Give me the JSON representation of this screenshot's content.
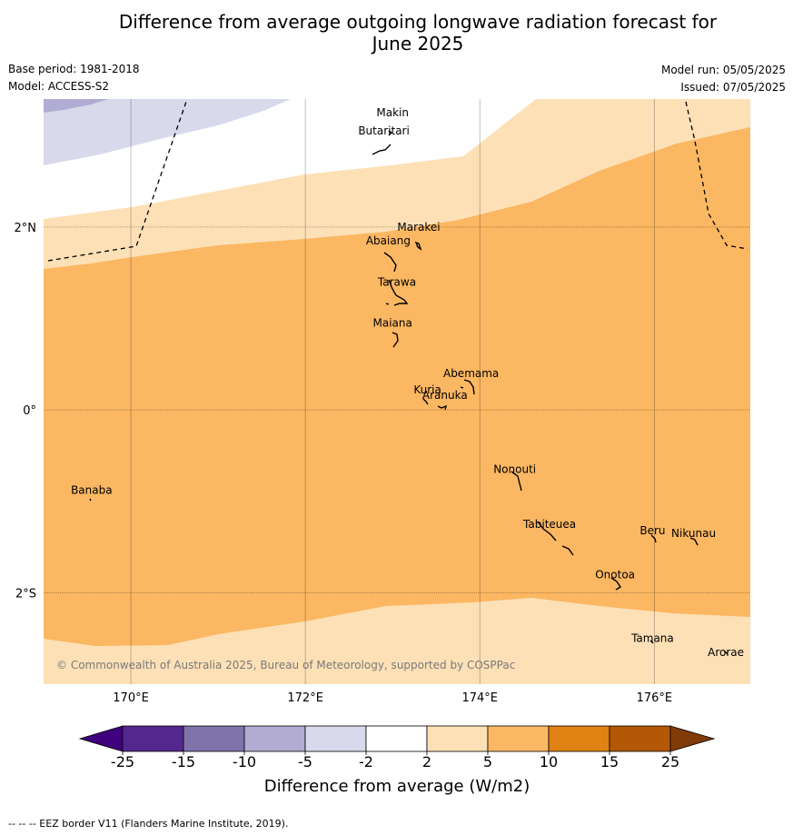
{
  "title": {
    "line1": "Difference from average outgoing longwave radiation forecast for",
    "line2": "June 2025"
  },
  "meta": {
    "base_period": "Base period: 1981-2018",
    "model": "Model: ACCESS-S2",
    "model_run": "Model run: 05/05/2025",
    "issued": "Issued: 07/05/2025"
  },
  "map": {
    "lon_range": [
      169,
      177.1
    ],
    "lat_range": [
      -3.0,
      3.4
    ],
    "lon_ticks": [
      {
        "value": 170,
        "label": "170°E"
      },
      {
        "value": 172,
        "label": "172°E"
      },
      {
        "value": 174,
        "label": "174°E"
      },
      {
        "value": 176,
        "label": "176°E"
      }
    ],
    "lat_ticks": [
      {
        "value": 2,
        "label": "2°N"
      },
      {
        "value": 0,
        "label": "0°"
      },
      {
        "value": -2,
        "label": "2°S"
      }
    ],
    "places": [
      {
        "name": "Makin",
        "lon": 173.0,
        "lat": 3.25
      },
      {
        "name": "Butaritari",
        "lon": 172.9,
        "lat": 3.05
      },
      {
        "name": "Marakei",
        "lon": 173.3,
        "lat": 2.0
      },
      {
        "name": "Abaiang",
        "lon": 172.95,
        "lat": 1.85
      },
      {
        "name": "Tarawa",
        "lon": 173.05,
        "lat": 1.4
      },
      {
        "name": "Maiana",
        "lon": 173.0,
        "lat": 0.95
      },
      {
        "name": "Abemama",
        "lon": 173.9,
        "lat": 0.4
      },
      {
        "name": "Kuria",
        "lon": 173.4,
        "lat": 0.22
      },
      {
        "name": "Aranuka",
        "lon": 173.6,
        "lat": 0.16
      },
      {
        "name": "Nonouti",
        "lon": 174.4,
        "lat": -0.65
      },
      {
        "name": "Banaba",
        "lon": 169.55,
        "lat": -0.88
      },
      {
        "name": "Beru",
        "lon": 175.98,
        "lat": -1.32
      },
      {
        "name": "Nikunau",
        "lon": 176.45,
        "lat": -1.35
      },
      {
        "name": "Tabiteuea",
        "lon": 174.8,
        "lat": -1.25
      },
      {
        "name": "Onotoa",
        "lon": 175.55,
        "lat": -1.8
      },
      {
        "name": "Tamana",
        "lon": 175.98,
        "lat": -2.5
      },
      {
        "name": "Arorae",
        "lon": 176.82,
        "lat": -2.65
      }
    ],
    "copyright": "© Commonwealth of Australia 2025, Bureau of Meteorology, supported by COSPPac",
    "colors": {
      "band_m10_m5": "#b1acd3",
      "band_m5_m2": "#d9d9ec",
      "band_m2_2": "#ffffff",
      "band_2_5": "#fde0b6",
      "band_5_10": "#fbb762",
      "coastline": "#000000",
      "eez": "#000000"
    }
  },
  "colorbar": {
    "ticks": [
      "-25",
      "-15",
      "-10",
      "-5",
      "-2",
      "2",
      "5",
      "10",
      "15",
      "25"
    ],
    "colors": [
      "#3f007d",
      "#54278f",
      "#8073ac",
      "#b2abd2",
      "#d8daeb",
      "#ffffff",
      "#fee0b6",
      "#fdb863",
      "#e08214",
      "#b35806",
      "#7f3b08"
    ],
    "label": "Difference from average (W/m2)"
  },
  "footnote": "--  --  -- EEZ border V11 (Flanders Marine Institute, 2019)."
}
